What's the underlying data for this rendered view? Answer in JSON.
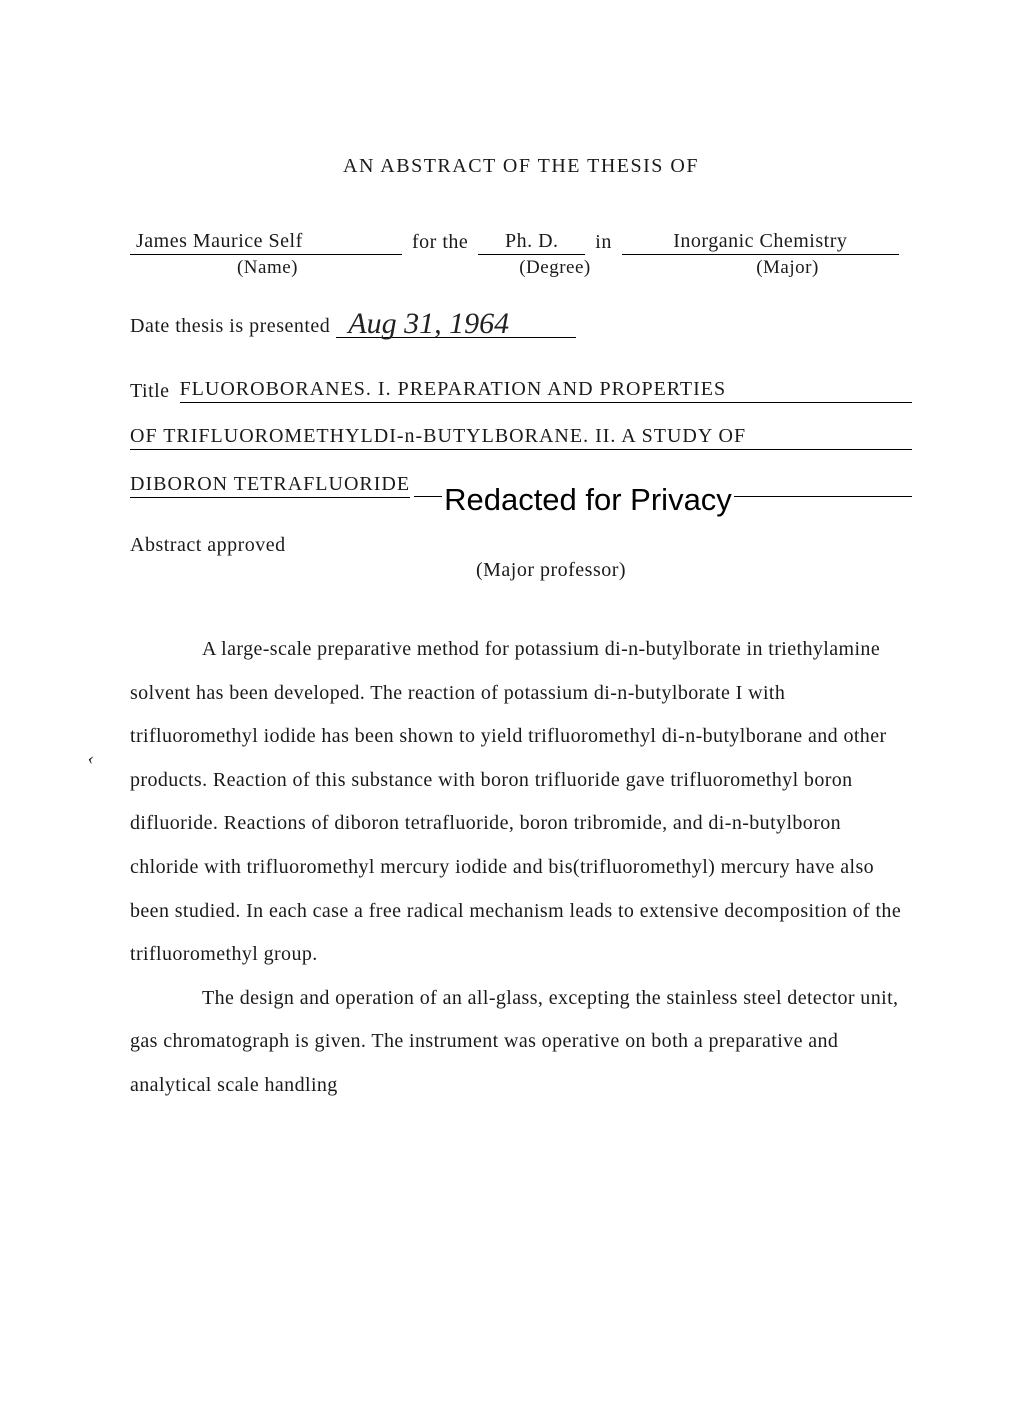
{
  "heading": "AN ABSTRACT OF THE THESIS OF",
  "idLine": {
    "name": "James Maurice Self",
    "forThe": "for the",
    "degree": "Ph. D.",
    "in": "in",
    "major": "Inorganic Chemistry",
    "labels": {
      "name": "(Name)",
      "degree": "(Degree)",
      "major": "(Major)"
    }
  },
  "date": {
    "label": "Date thesis is presented",
    "handwritten": "Aug 31, 1964"
  },
  "title": {
    "label": "Title",
    "line1": "FLUOROBORANES.  I.  PREPARATION AND PROPERTIES",
    "line2": "OF TRIFLUOROMETHYLDI-n-BUTYLBORANE.  II.  A STUDY OF",
    "line3_underlined": "DIBORON TETRAFLUORIDE",
    "redacted": "Redacted for Privacy"
  },
  "approved": {
    "label": "Abstract approved",
    "sub": "(Major professor)"
  },
  "paragraphs": [
    "A large-scale preparative method for potassium di-n-butyl­borate in triethylamine solvent has been developed.  The reaction of potassium di-n-butylborate I with trifluoromethyl iodide has been shown to yield trifluoromethyl di-n-butylborane and other products. Reaction of this substance with boron trifluoride gave trifluoromethyl boron difluoride.  Reactions of diboron tetrafluoride, boron tri­bromide, and di-n-butylboron chloride with trifluoromethyl mercury iodide and bis(trifluoromethyl) mercury have also been studied.  In each case a free radical mechanism leads to extensive decomposi­tion of the trifluoromethyl group.",
    "The design and operation of an all-glass, excepting the stain­less steel detector unit, gas chromatograph is given.  The instrument was operative on both a preparative and analytical scale handling"
  ],
  "stray_mark": "‹"
}
